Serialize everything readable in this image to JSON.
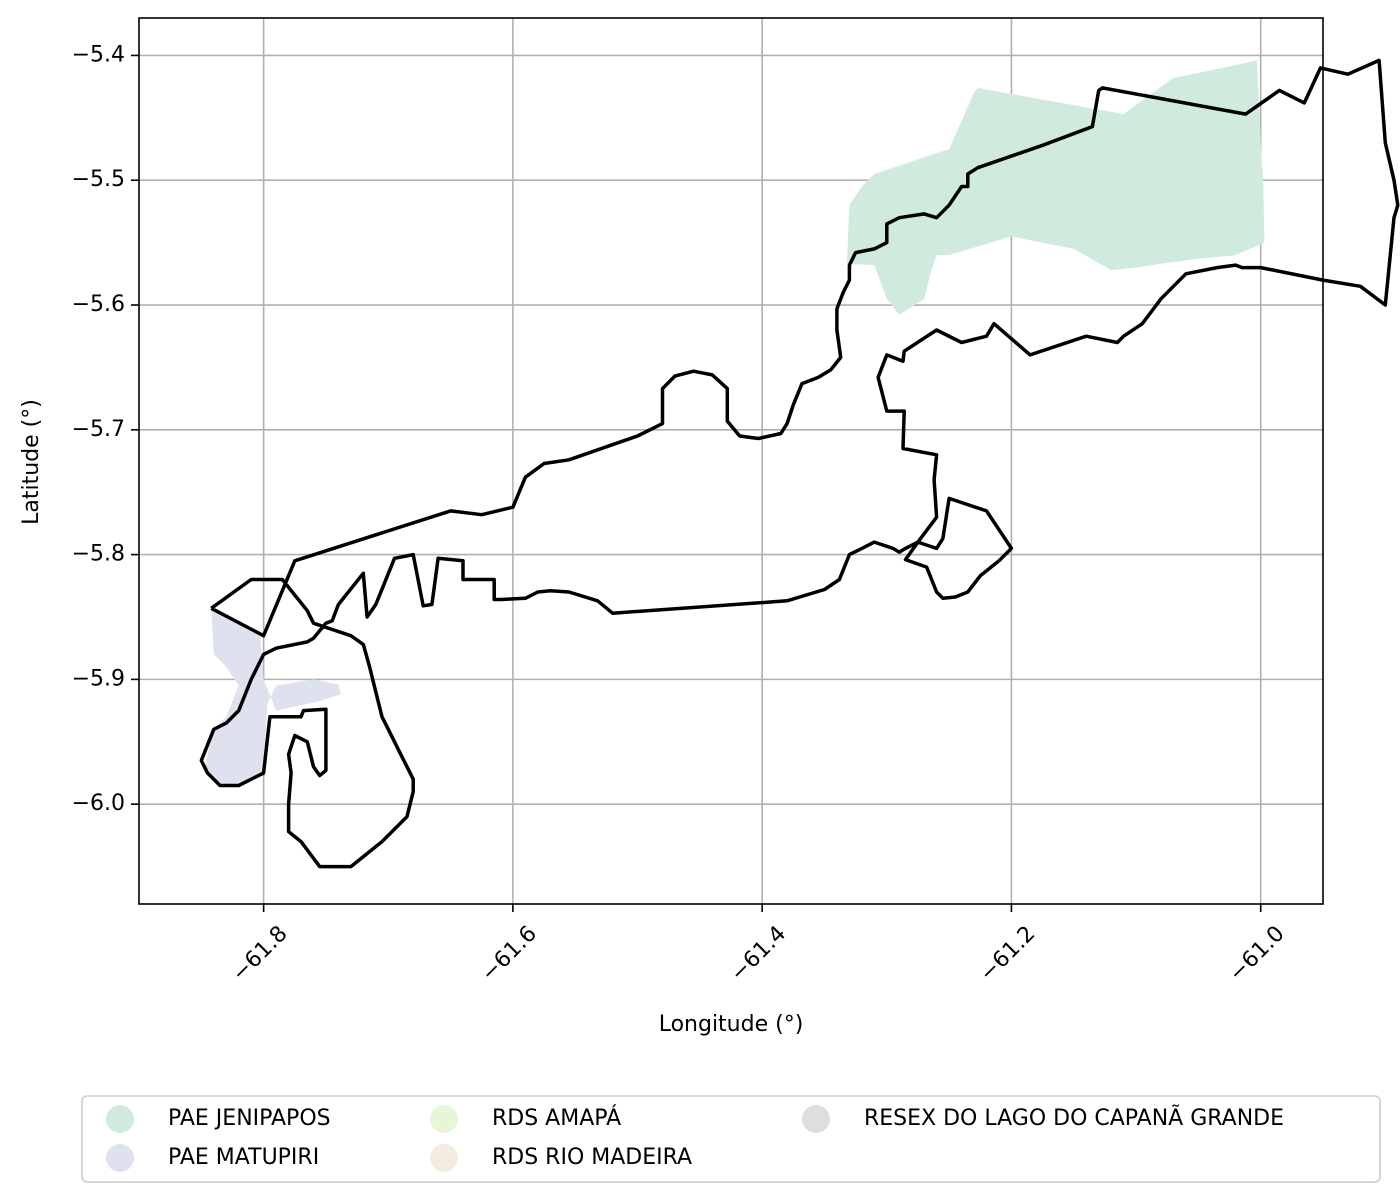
{
  "chart_data": {
    "type": "map",
    "xlabel": "Longitude (°)",
    "ylabel": "Latitude (°)",
    "xlim": [
      -61.9,
      -60.95
    ],
    "ylim": [
      -6.08,
      -5.37
    ],
    "grid": true,
    "xticks": [
      {
        "value": -61.8,
        "label": "−61.8"
      },
      {
        "value": -61.6,
        "label": "−61.6"
      },
      {
        "value": -61.4,
        "label": "−61.4"
      },
      {
        "value": -61.2,
        "label": "−61.2"
      },
      {
        "value": -61.0,
        "label": "−61.0"
      }
    ],
    "yticks": [
      {
        "value": -5.4,
        "label": "−5.4"
      },
      {
        "value": -5.5,
        "label": "−5.5"
      },
      {
        "value": -5.6,
        "label": "−5.6"
      },
      {
        "value": -5.7,
        "label": "−5.7"
      },
      {
        "value": -5.8,
        "label": "−5.8"
      },
      {
        "value": -5.9,
        "label": "−5.9"
      },
      {
        "value": -6.0,
        "label": "−6.0"
      }
    ],
    "legend_position": "bottom-center",
    "legend": [
      {
        "label": "PAE JENIPAPOS",
        "color": "#d0ebde"
      },
      {
        "label": "PAE MATUPIRI",
        "color": "#dee2ee"
      },
      {
        "label": "RDS AMAPÁ",
        "color": "#e8f6d8"
      },
      {
        "label": "RDS RIO MADEIRA",
        "color": "#f3ebde"
      },
      {
        "label": "RESEX DO LAGO DO CAPANÃ GRANDE",
        "color": "#dedede"
      }
    ],
    "areas": [
      {
        "label": "PAE JENIPAPOS",
        "color": "#d0ebde",
        "coords": [
          [
            -61.332,
            -5.567
          ],
          [
            -61.33,
            -5.52
          ],
          [
            -61.32,
            -5.505
          ],
          [
            -61.31,
            -5.495
          ],
          [
            -61.25,
            -5.475
          ],
          [
            -61.23,
            -5.43
          ],
          [
            -61.227,
            -5.426
          ],
          [
            -61.11,
            -5.447
          ],
          [
            -61.07,
            -5.418
          ],
          [
            -61.04,
            -5.412
          ],
          [
            -61.003,
            -5.404
          ],
          [
            -61.0,
            -5.47
          ],
          [
            -60.998,
            -5.5
          ],
          [
            -60.997,
            -5.55
          ],
          [
            -61.02,
            -5.56
          ],
          [
            -61.05,
            -5.563
          ],
          [
            -61.08,
            -5.567
          ],
          [
            -61.1,
            -5.57
          ],
          [
            -61.12,
            -5.572
          ],
          [
            -61.15,
            -5.555
          ],
          [
            -61.2,
            -5.545
          ],
          [
            -61.25,
            -5.56
          ],
          [
            -61.26,
            -5.56
          ],
          [
            -61.265,
            -5.575
          ],
          [
            -61.27,
            -5.595
          ],
          [
            -61.29,
            -5.608
          ],
          [
            -61.3,
            -5.595
          ],
          [
            -61.31,
            -5.568
          ]
        ]
      },
      {
        "label": "PAE MATUPIRI",
        "color": "#dee2ee",
        "coords": [
          [
            -61.842,
            -5.843
          ],
          [
            -61.84,
            -5.88
          ],
          [
            -61.83,
            -5.89
          ],
          [
            -61.82,
            -5.905
          ],
          [
            -61.83,
            -5.93
          ],
          [
            -61.84,
            -5.94
          ],
          [
            -61.845,
            -5.96
          ],
          [
            -61.847,
            -5.97
          ],
          [
            -61.838,
            -5.983
          ],
          [
            -61.82,
            -5.985
          ],
          [
            -61.8,
            -5.975
          ],
          [
            -61.797,
            -5.92
          ],
          [
            -61.79,
            -5.905
          ],
          [
            -61.76,
            -5.9
          ],
          [
            -61.74,
            -5.904
          ],
          [
            -61.738,
            -5.912
          ],
          [
            -61.757,
            -5.918
          ],
          [
            -61.79,
            -5.925
          ],
          [
            -61.8,
            -5.9
          ],
          [
            -61.803,
            -5.862
          ]
        ]
      }
    ],
    "boundary": [
      [
        -61.842,
        -5.843
      ],
      [
        -61.8,
        -5.865
      ],
      [
        -61.775,
        -5.805
      ],
      [
        -61.65,
        -5.765
      ],
      [
        -61.625,
        -5.768
      ],
      [
        -61.6,
        -5.762
      ],
      [
        -61.59,
        -5.738
      ],
      [
        -61.575,
        -5.727
      ],
      [
        -61.555,
        -5.724
      ],
      [
        -61.5,
        -5.705
      ],
      [
        -61.48,
        -5.695
      ],
      [
        -61.48,
        -5.667
      ],
      [
        -61.47,
        -5.657
      ],
      [
        -61.455,
        -5.653
      ],
      [
        -61.44,
        -5.656
      ],
      [
        -61.428,
        -5.667
      ],
      [
        -61.428,
        -5.693
      ],
      [
        -61.418,
        -5.705
      ],
      [
        -61.403,
        -5.707
      ],
      [
        -61.385,
        -5.703
      ],
      [
        -61.38,
        -5.695
      ],
      [
        -61.375,
        -5.68
      ],
      [
        -61.368,
        -5.663
      ],
      [
        -61.355,
        -5.658
      ],
      [
        -61.345,
        -5.652
      ],
      [
        -61.337,
        -5.642
      ],
      [
        -61.34,
        -5.62
      ],
      [
        -61.34,
        -5.603
      ],
      [
        -61.335,
        -5.59
      ],
      [
        -61.33,
        -5.58
      ],
      [
        -61.33,
        -5.568
      ],
      [
        -61.325,
        -5.558
      ],
      [
        -61.31,
        -5.555
      ],
      [
        -61.3,
        -5.55
      ],
      [
        -61.3,
        -5.535
      ],
      [
        -61.29,
        -5.53
      ],
      [
        -61.27,
        -5.527
      ],
      [
        -61.26,
        -5.53
      ],
      [
        -61.25,
        -5.52
      ],
      [
        -61.24,
        -5.505
      ],
      [
        -61.235,
        -5.505
      ],
      [
        -61.235,
        -5.495
      ],
      [
        -61.227,
        -5.49
      ],
      [
        -61.175,
        -5.472
      ],
      [
        -61.135,
        -5.457
      ],
      [
        -61.13,
        -5.428
      ],
      [
        -61.127,
        -5.426
      ],
      [
        -61.012,
        -5.447
      ],
      [
        -60.985,
        -5.428
      ],
      [
        -60.965,
        -5.438
      ],
      [
        -60.952,
        -5.41
      ],
      [
        -60.93,
        -5.415
      ],
      [
        -60.905,
        -5.404
      ],
      [
        -60.9,
        -5.47
      ],
      [
        -60.893,
        -5.5
      ],
      [
        -60.89,
        -5.52
      ],
      [
        -60.893,
        -5.53
      ],
      [
        -60.9,
        -5.6
      ],
      [
        -60.92,
        -5.585
      ],
      [
        -60.95,
        -5.58
      ],
      [
        -61.0,
        -5.57
      ],
      [
        -61.015,
        -5.57
      ],
      [
        -61.02,
        -5.568
      ],
      [
        -61.035,
        -5.57
      ],
      [
        -61.06,
        -5.575
      ],
      [
        -61.08,
        -5.595
      ],
      [
        -61.095,
        -5.615
      ],
      [
        -61.11,
        -5.625
      ],
      [
        -61.115,
        -5.63
      ],
      [
        -61.14,
        -5.625
      ],
      [
        -61.185,
        -5.64
      ],
      [
        -61.214,
        -5.615
      ],
      [
        -61.22,
        -5.625
      ],
      [
        -61.24,
        -5.63
      ],
      [
        -61.26,
        -5.62
      ],
      [
        -61.286,
        -5.637
      ],
      [
        -61.287,
        -5.645
      ],
      [
        -61.3,
        -5.64
      ],
      [
        -61.307,
        -5.658
      ],
      [
        -61.3,
        -5.685
      ],
      [
        -61.286,
        -5.685
      ],
      [
        -61.287,
        -5.715
      ],
      [
        -61.26,
        -5.72
      ],
      [
        -61.262,
        -5.74
      ],
      [
        -61.26,
        -5.77
      ],
      [
        -61.275,
        -5.79
      ],
      [
        -61.285,
        -5.804
      ],
      [
        -61.268,
        -5.81
      ],
      [
        -61.26,
        -5.83
      ],
      [
        -61.255,
        -5.835
      ],
      [
        -61.245,
        -5.834
      ],
      [
        -61.235,
        -5.83
      ],
      [
        -61.225,
        -5.817
      ],
      [
        -61.21,
        -5.805
      ],
      [
        -61.2,
        -5.795
      ],
      [
        -61.22,
        -5.765
      ],
      [
        -61.25,
        -5.755
      ],
      [
        -61.255,
        -5.787
      ],
      [
        -61.26,
        -5.795
      ],
      [
        -61.275,
        -5.79
      ],
      [
        -61.285,
        -5.795
      ],
      [
        -61.29,
        -5.798
      ],
      [
        -61.295,
        -5.795
      ],
      [
        -61.31,
        -5.79
      ],
      [
        -61.32,
        -5.795
      ],
      [
        -61.33,
        -5.8
      ],
      [
        -61.338,
        -5.82
      ],
      [
        -61.35,
        -5.828
      ],
      [
        -61.38,
        -5.837
      ],
      [
        -61.52,
        -5.847
      ],
      [
        -61.532,
        -5.837
      ],
      [
        -61.555,
        -5.83
      ],
      [
        -61.57,
        -5.829
      ],
      [
        -61.58,
        -5.83
      ],
      [
        -61.59,
        -5.835
      ],
      [
        -61.61,
        -5.836
      ],
      [
        -61.615,
        -5.836
      ],
      [
        -61.615,
        -5.82
      ],
      [
        -61.64,
        -5.82
      ],
      [
        -61.64,
        -5.805
      ],
      [
        -61.66,
        -5.803
      ],
      [
        -61.665,
        -5.84
      ],
      [
        -61.672,
        -5.841
      ],
      [
        -61.68,
        -5.8
      ],
      [
        -61.695,
        -5.803
      ],
      [
        -61.71,
        -5.84
      ],
      [
        -61.717,
        -5.85
      ],
      [
        -61.72,
        -5.815
      ],
      [
        -61.74,
        -5.84
      ],
      [
        -61.745,
        -5.853
      ],
      [
        -61.75,
        -5.855
      ],
      [
        -61.76,
        -5.867
      ],
      [
        -61.765,
        -5.87
      ],
      [
        -61.79,
        -5.875
      ],
      [
        -61.8,
        -5.88
      ],
      [
        -61.81,
        -5.9
      ],
      [
        -61.82,
        -5.925
      ],
      [
        -61.83,
        -5.935
      ],
      [
        -61.84,
        -5.94
      ],
      [
        -61.85,
        -5.965
      ],
      [
        -61.845,
        -5.975
      ],
      [
        -61.835,
        -5.985
      ],
      [
        -61.82,
        -5.985
      ],
      [
        -61.8,
        -5.975
      ],
      [
        -61.795,
        -5.93
      ],
      [
        -61.77,
        -5.93
      ],
      [
        -61.768,
        -5.925
      ],
      [
        -61.75,
        -5.924
      ],
      [
        -61.75,
        -5.973
      ],
      [
        -61.755,
        -5.977
      ],
      [
        -61.76,
        -5.97
      ],
      [
        -61.765,
        -5.95
      ],
      [
        -61.775,
        -5.945
      ],
      [
        -61.78,
        -5.96
      ],
      [
        -61.778,
        -5.975
      ],
      [
        -61.78,
        -6.0
      ],
      [
        -61.78,
        -6.022
      ],
      [
        -61.77,
        -6.03
      ],
      [
        -61.755,
        -6.05
      ],
      [
        -61.73,
        -6.05
      ],
      [
        -61.705,
        -6.03
      ],
      [
        -61.685,
        -6.01
      ],
      [
        -61.68,
        -5.99
      ],
      [
        -61.68,
        -5.98
      ],
      [
        -61.685,
        -5.97
      ],
      [
        -61.69,
        -5.96
      ],
      [
        -61.7,
        -5.94
      ],
      [
        -61.705,
        -5.93
      ],
      [
        -61.71,
        -5.91
      ],
      [
        -61.715,
        -5.89
      ],
      [
        -61.72,
        -5.872
      ],
      [
        -61.73,
        -5.865
      ],
      [
        -61.745,
        -5.86
      ],
      [
        -61.76,
        -5.855
      ],
      [
        -61.765,
        -5.845
      ],
      [
        -61.785,
        -5.82
      ],
      [
        -61.81,
        -5.82
      ],
      [
        -61.842,
        -5.843
      ]
    ]
  }
}
